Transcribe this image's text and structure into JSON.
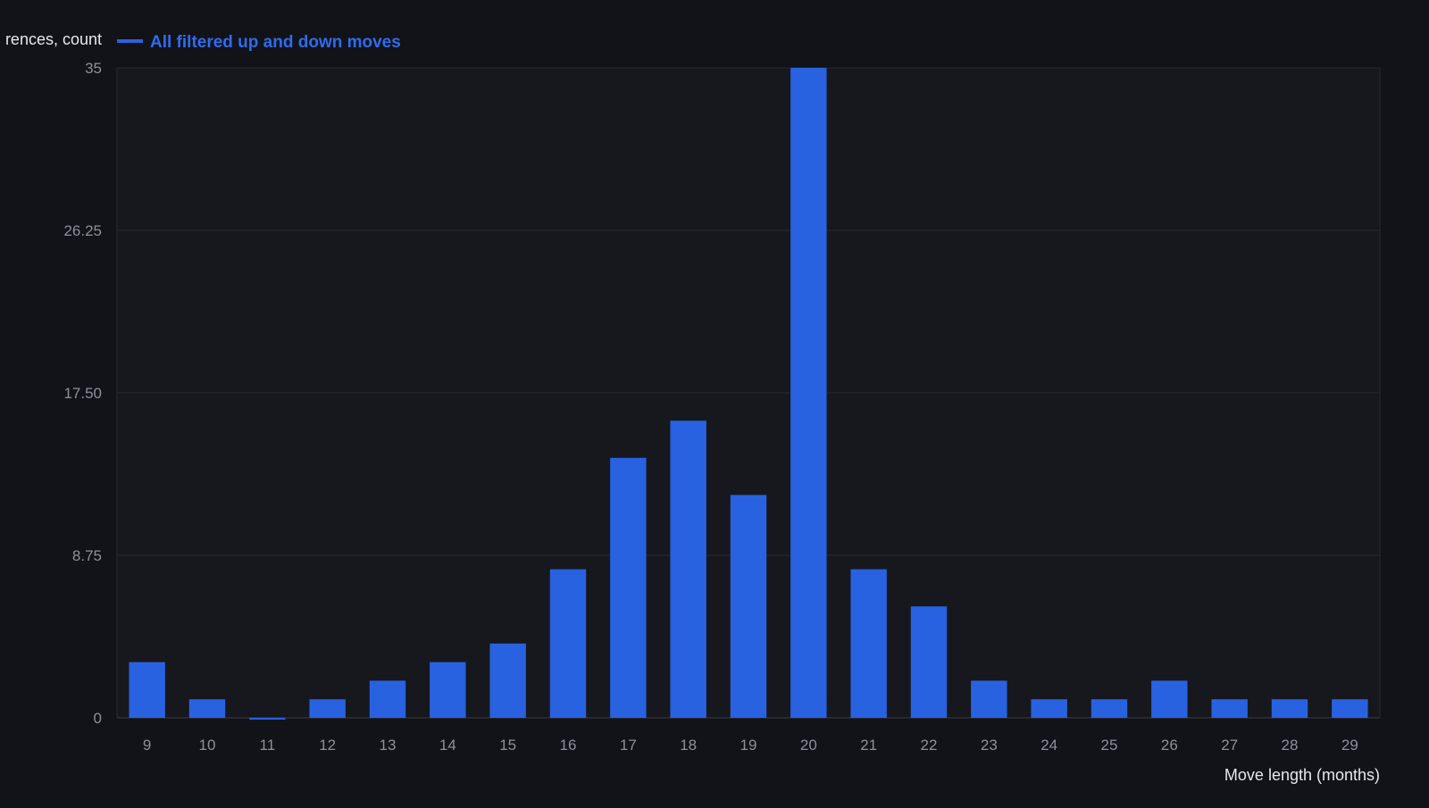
{
  "chart_data": {
    "type": "bar",
    "ylabel": "rences, count",
    "xlabel": "Move length (months)",
    "legend": {
      "position": "top-left",
      "entries": [
        "All filtered up and down moves"
      ]
    },
    "series": [
      {
        "name": "All filtered up and down moves",
        "values": [
          3,
          1,
          0,
          1,
          2,
          3,
          4,
          8,
          14,
          16,
          12,
          35,
          8,
          6,
          2,
          1,
          1,
          2,
          1,
          1,
          1
        ]
      }
    ],
    "categories": [
      "9",
      "10",
      "11",
      "12",
      "13",
      "14",
      "15",
      "16",
      "17",
      "18",
      "19",
      "20",
      "21",
      "22",
      "23",
      "24",
      "25",
      "26",
      "27",
      "28",
      "29"
    ],
    "yticks": [
      "0",
      "8.75",
      "17.50",
      "26.25",
      "35"
    ],
    "ylim": [
      0,
      35
    ],
    "grid": true,
    "colors": {
      "background": "#111318",
      "plot_background": "#16181e",
      "bar": "#2962e0",
      "legend_text": "#2f6bf0",
      "grid": "#262a31",
      "tick_text": "#8c9099",
      "label_text": "#e6e8ec"
    }
  }
}
